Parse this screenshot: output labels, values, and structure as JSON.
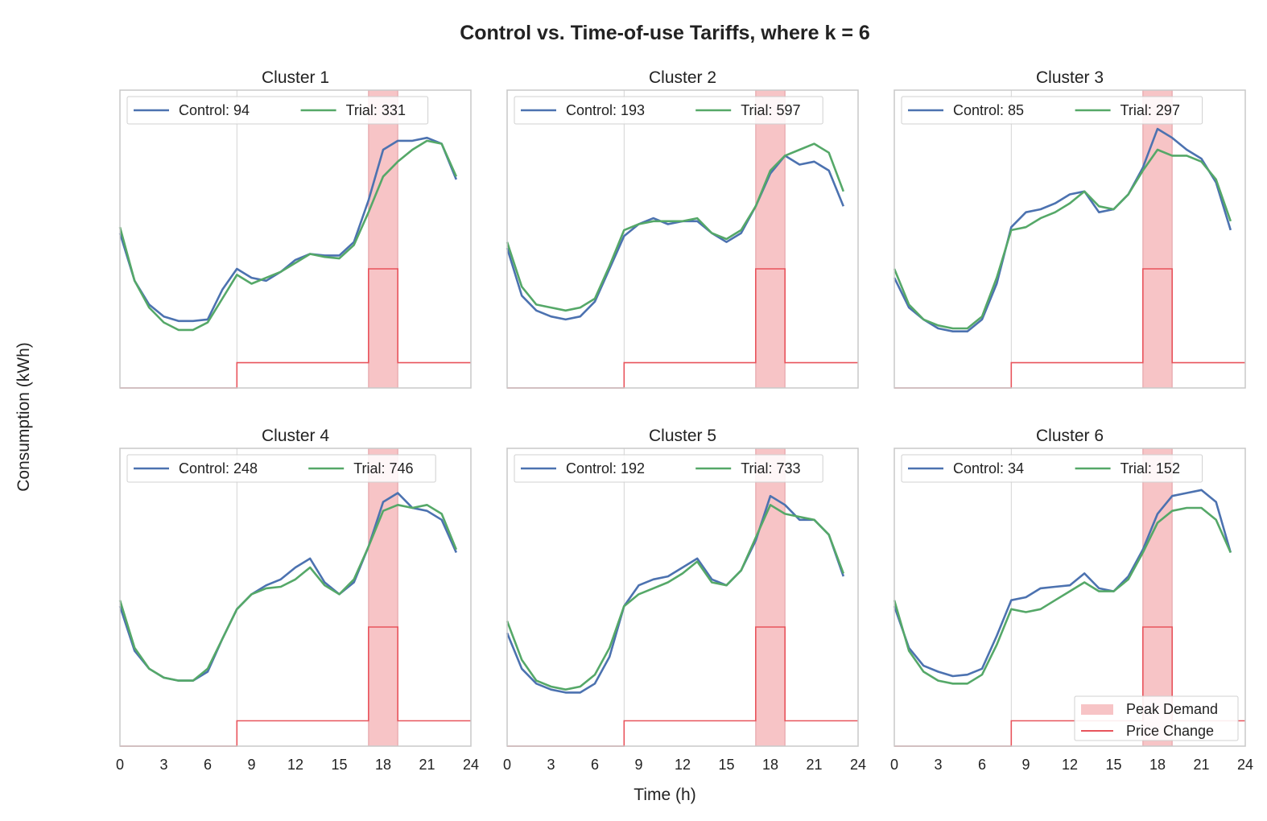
{
  "chart_data": {
    "type": "line",
    "title": "Control vs. Time-of-use Tariffs, where k = 6",
    "xlabel": "Time (h)",
    "ylabel": "Consumption (kWh)",
    "x_ticks": [
      0,
      3,
      6,
      9,
      12,
      15,
      18,
      21,
      24
    ],
    "xlim": [
      0,
      24
    ],
    "ylim": [
      0,
      1
    ],
    "y_ticks_shown": false,
    "grid": false,
    "hours": [
      0,
      1,
      2,
      3,
      4,
      5,
      6,
      7,
      8,
      9,
      10,
      11,
      12,
      13,
      14,
      15,
      16,
      17,
      18,
      19,
      20,
      21,
      22,
      23
    ],
    "peak_window": [
      17,
      19
    ],
    "tariff_change_hour": 8,
    "price_levels": {
      "off_peak": 0.0,
      "day": 0.085,
      "peak": 0.4
    },
    "overlay_legend": {
      "peak_label": "Peak Demand",
      "price_label": "Price Change",
      "position": "lower right"
    },
    "colors": {
      "control": "#4c72b0",
      "trial": "#55a868",
      "peak_fill": "#f7c4c6",
      "price_line": "#e8545c"
    },
    "panels": [
      {
        "title": "Cluster 1",
        "series": [
          {
            "name": "Control: 94",
            "values": [
              0.52,
              0.36,
              0.28,
              0.24,
              0.225,
              0.225,
              0.23,
              0.33,
              0.4,
              0.37,
              0.36,
              0.39,
              0.43,
              0.45,
              0.445,
              0.445,
              0.49,
              0.63,
              0.8,
              0.83,
              0.83,
              0.84,
              0.82,
              0.7
            ]
          },
          {
            "name": "Trial: 331",
            "values": [
              0.54,
              0.36,
              0.27,
              0.22,
              0.195,
              0.195,
              0.22,
              0.3,
              0.38,
              0.35,
              0.37,
              0.39,
              0.42,
              0.45,
              0.44,
              0.435,
              0.48,
              0.59,
              0.71,
              0.76,
              0.8,
              0.83,
              0.82,
              0.71
            ]
          }
        ]
      },
      {
        "title": "Cluster 2",
        "series": [
          {
            "name": "Control: 193",
            "values": [
              0.47,
              0.31,
              0.26,
              0.24,
              0.23,
              0.24,
              0.29,
              0.4,
              0.51,
              0.55,
              0.57,
              0.55,
              0.56,
              0.56,
              0.52,
              0.49,
              0.52,
              0.61,
              0.72,
              0.78,
              0.75,
              0.76,
              0.73,
              0.61
            ]
          },
          {
            "name": "Trial: 597",
            "values": [
              0.49,
              0.34,
              0.28,
              0.27,
              0.26,
              0.27,
              0.3,
              0.41,
              0.53,
              0.55,
              0.56,
              0.56,
              0.56,
              0.57,
              0.52,
              0.5,
              0.53,
              0.61,
              0.73,
              0.78,
              0.8,
              0.82,
              0.79,
              0.66
            ]
          }
        ]
      },
      {
        "title": "Cluster 3",
        "series": [
          {
            "name": "Control: 85",
            "values": [
              0.37,
              0.27,
              0.23,
              0.2,
              0.19,
              0.19,
              0.23,
              0.35,
              0.54,
              0.59,
              0.6,
              0.62,
              0.65,
              0.66,
              0.59,
              0.6,
              0.65,
              0.74,
              0.87,
              0.84,
              0.8,
              0.77,
              0.69,
              0.53
            ]
          },
          {
            "name": "Trial: 297",
            "values": [
              0.4,
              0.28,
              0.23,
              0.21,
              0.2,
              0.2,
              0.24,
              0.37,
              0.53,
              0.54,
              0.57,
              0.59,
              0.62,
              0.66,
              0.61,
              0.6,
              0.65,
              0.73,
              0.8,
              0.78,
              0.78,
              0.76,
              0.7,
              0.56
            ]
          }
        ]
      },
      {
        "title": "Cluster 4",
        "series": [
          {
            "name": "Control: 248",
            "values": [
              0.47,
              0.32,
              0.26,
              0.23,
              0.22,
              0.22,
              0.25,
              0.36,
              0.46,
              0.51,
              0.54,
              0.56,
              0.6,
              0.63,
              0.55,
              0.51,
              0.55,
              0.67,
              0.82,
              0.85,
              0.8,
              0.79,
              0.76,
              0.65
            ]
          },
          {
            "name": "Trial: 746",
            "values": [
              0.49,
              0.33,
              0.26,
              0.23,
              0.22,
              0.22,
              0.26,
              0.36,
              0.46,
              0.51,
              0.53,
              0.535,
              0.56,
              0.6,
              0.54,
              0.51,
              0.56,
              0.67,
              0.79,
              0.81,
              0.8,
              0.81,
              0.78,
              0.66
            ]
          }
        ]
      },
      {
        "title": "Cluster 5",
        "series": [
          {
            "name": "Control: 192",
            "values": [
              0.38,
              0.26,
              0.21,
              0.19,
              0.18,
              0.18,
              0.21,
              0.3,
              0.47,
              0.54,
              0.56,
              0.57,
              0.6,
              0.63,
              0.56,
              0.54,
              0.59,
              0.69,
              0.84,
              0.81,
              0.76,
              0.76,
              0.71,
              0.57
            ]
          },
          {
            "name": "Trial: 733",
            "values": [
              0.42,
              0.29,
              0.22,
              0.2,
              0.19,
              0.2,
              0.24,
              0.33,
              0.47,
              0.51,
              0.53,
              0.55,
              0.58,
              0.62,
              0.55,
              0.54,
              0.59,
              0.7,
              0.81,
              0.78,
              0.77,
              0.76,
              0.71,
              0.58
            ]
          }
        ]
      },
      {
        "title": "Cluster 6",
        "series": [
          {
            "name": "Control: 34",
            "values": [
              0.47,
              0.33,
              0.27,
              0.25,
              0.235,
              0.24,
              0.26,
              0.37,
              0.49,
              0.5,
              0.53,
              0.535,
              0.54,
              0.58,
              0.53,
              0.52,
              0.57,
              0.66,
              0.78,
              0.84,
              0.85,
              0.86,
              0.82,
              0.65
            ]
          },
          {
            "name": "Trial: 152",
            "values": [
              0.49,
              0.32,
              0.25,
              0.22,
              0.21,
              0.21,
              0.24,
              0.34,
              0.46,
              0.45,
              0.46,
              0.49,
              0.52,
              0.55,
              0.52,
              0.52,
              0.56,
              0.65,
              0.75,
              0.79,
              0.8,
              0.8,
              0.76,
              0.65
            ]
          }
        ]
      }
    ]
  }
}
